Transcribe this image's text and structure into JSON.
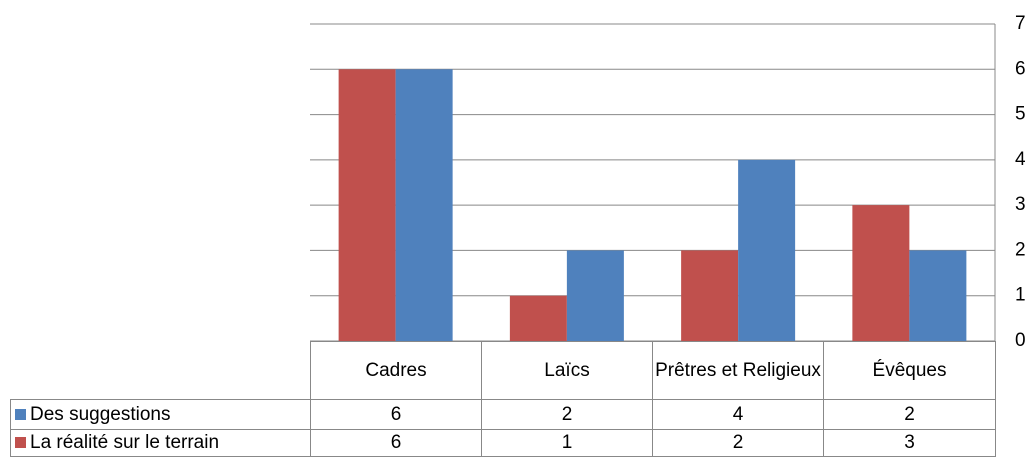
{
  "chart_data": {
    "type": "bar",
    "categories": [
      "Cadres",
      "Laïcs",
      "Prêtres et Religieux",
      "Évêques"
    ],
    "series": [
      {
        "name": "Des suggestions",
        "color": "#4f81bd",
        "values": [
          6,
          2,
          4,
          2
        ]
      },
      {
        "name": "La réalité sur le terrain",
        "color": "#c0504d",
        "values": [
          6,
          1,
          2,
          3
        ]
      }
    ],
    "ylim": [
      0,
      7
    ],
    "yticks": [
      0,
      1,
      2,
      3,
      4,
      5,
      6,
      7
    ],
    "grid": true
  }
}
